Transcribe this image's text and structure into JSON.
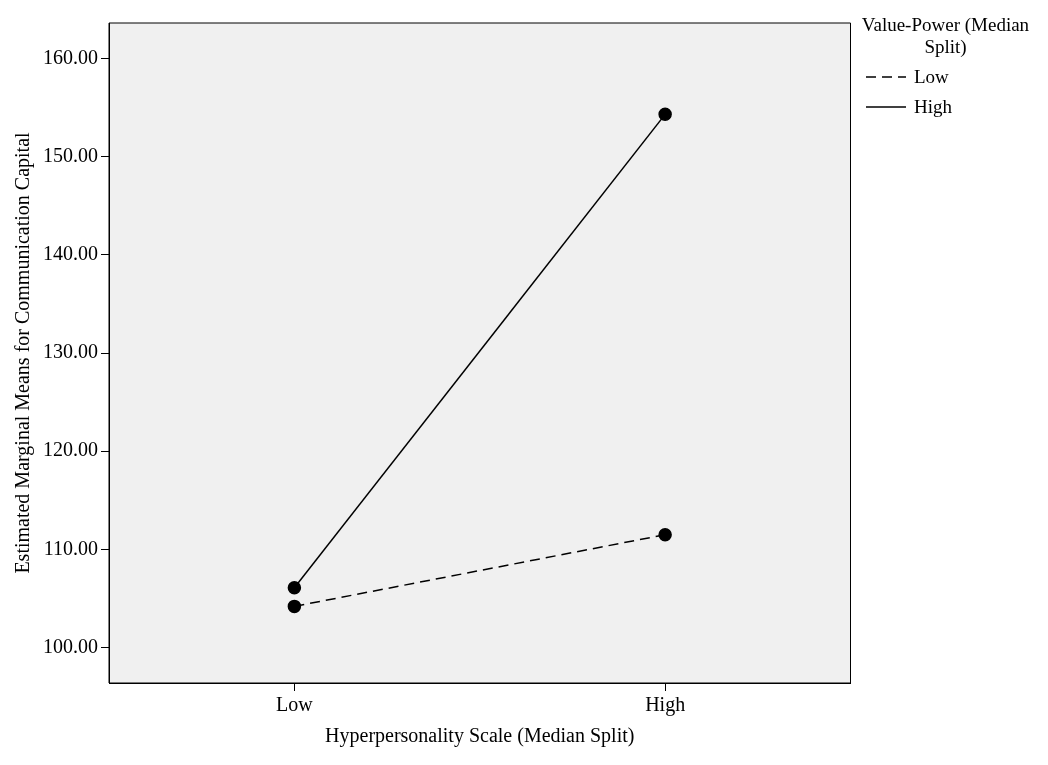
{
  "chart_data": {
    "type": "line",
    "xlabel": "Hyperpersonality Scale (Median Split)",
    "ylabel": "Estimated Marginal Means for Communication Capital",
    "legend_title": "Value-Power (Median Split)",
    "categories": [
      "Low",
      "High"
    ],
    "series": [
      {
        "name": "Low",
        "color": "#000000",
        "values": [
          104.2,
          111.5
        ],
        "line_style": "dashed"
      },
      {
        "name": "High",
        "color": "#000000",
        "values": [
          106.1,
          154.3
        ],
        "line_style": "solid"
      }
    ],
    "ylim": [
      96.4,
      163.6
    ],
    "yticks": [
      {
        "value": 100,
        "label": "100.00"
      },
      {
        "value": 110,
        "label": "110.00"
      },
      {
        "value": 120,
        "label": "120.00"
      },
      {
        "value": 130,
        "label": "130.00"
      },
      {
        "value": 140,
        "label": "140.00"
      },
      {
        "value": 150,
        "label": "150.00"
      },
      {
        "value": 160,
        "label": "160.00"
      }
    ],
    "grid": false,
    "legend": "top right",
    "marker": "circle"
  }
}
